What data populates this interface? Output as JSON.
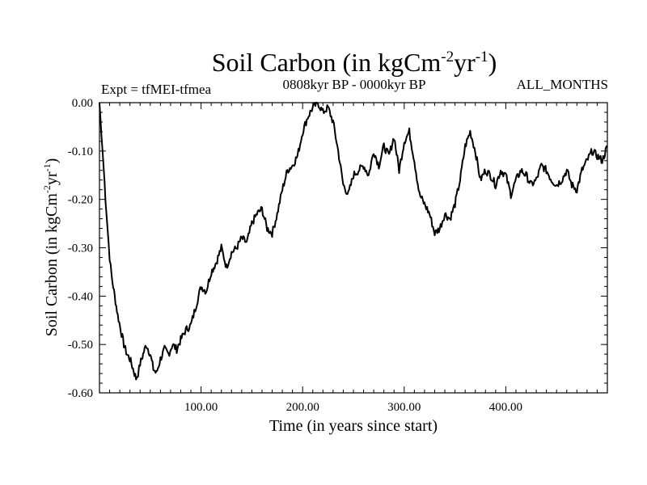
{
  "chart_data": {
    "type": "line",
    "title": {
      "main": "Soil Carbon (in kgCm",
      "exp1": "-2",
      "mid": "yr",
      "exp2": "-1",
      "end": ")"
    },
    "subtitle": "0808kyr BP - 0000kyr BP",
    "left_annotation": "Expt = tfMEI-tfmea",
    "right_annotation": "ALL_MONTHS",
    "xlabel": "Time (in years since start)",
    "ylabel": {
      "main": "Soil Carbon (in kgCm",
      "exp1": "-2",
      "mid": "yr",
      "exp2": "-1",
      "end": ")"
    },
    "xlim": [
      0,
      500
    ],
    "ylim": [
      -0.6,
      0.0
    ],
    "x_ticks": [
      100,
      200,
      300,
      400
    ],
    "x_tick_labels": [
      "100.00",
      "200.00",
      "300.00",
      "400.00"
    ],
    "x_minor_step": 10,
    "y_ticks": [
      0.0,
      -0.1,
      -0.2,
      -0.3,
      -0.4,
      -0.5,
      -0.6
    ],
    "y_tick_labels": [
      "0.00",
      "-0.10",
      "-0.20",
      "-0.30",
      "-0.40",
      "-0.50",
      "-0.60"
    ],
    "y_minor_step": 0.02,
    "grid": false,
    "series": [
      {
        "name": "Soil Carbon",
        "color": "#000000",
        "x": [
          0,
          2,
          4,
          6,
          8,
          10,
          12,
          15,
          18,
          21,
          24,
          27,
          30,
          33,
          36,
          38,
          40,
          43,
          46,
          50,
          53,
          56,
          60,
          64,
          68,
          72,
          76,
          80,
          85,
          90,
          95,
          100,
          105,
          110,
          115,
          120,
          125,
          130,
          135,
          140,
          145,
          150,
          155,
          160,
          165,
          170,
          175,
          180,
          185,
          190,
          195,
          200,
          205,
          210,
          215,
          220,
          225,
          230,
          235,
          240,
          245,
          250,
          255,
          260,
          265,
          270,
          275,
          280,
          285,
          290,
          295,
          300,
          305,
          310,
          315,
          320,
          325,
          330,
          335,
          340,
          345,
          350,
          355,
          360,
          365,
          370,
          375,
          380,
          385,
          390,
          395,
          400,
          405,
          410,
          415,
          420,
          425,
          430,
          435,
          440,
          445,
          450,
          455,
          460,
          465,
          470,
          475,
          480,
          485,
          490,
          495,
          500
        ],
        "y": [
          0.0,
          -0.07,
          -0.13,
          -0.2,
          -0.26,
          -0.32,
          -0.36,
          -0.4,
          -0.44,
          -0.47,
          -0.5,
          -0.52,
          -0.53,
          -0.55,
          -0.57,
          -0.56,
          -0.54,
          -0.52,
          -0.5,
          -0.52,
          -0.55,
          -0.56,
          -0.53,
          -0.51,
          -0.52,
          -0.5,
          -0.51,
          -0.49,
          -0.47,
          -0.46,
          -0.42,
          -0.38,
          -0.39,
          -0.35,
          -0.33,
          -0.3,
          -0.34,
          -0.31,
          -0.3,
          -0.28,
          -0.29,
          -0.25,
          -0.23,
          -0.22,
          -0.26,
          -0.27,
          -0.23,
          -0.18,
          -0.14,
          -0.13,
          -0.11,
          -0.06,
          -0.03,
          -0.01,
          0.0,
          -0.02,
          -0.01,
          -0.04,
          -0.1,
          -0.17,
          -0.19,
          -0.15,
          -0.14,
          -0.13,
          -0.15,
          -0.1,
          -0.13,
          -0.09,
          -0.11,
          -0.07,
          -0.14,
          -0.08,
          -0.06,
          -0.12,
          -0.19,
          -0.21,
          -0.23,
          -0.27,
          -0.26,
          -0.23,
          -0.24,
          -0.21,
          -0.16,
          -0.09,
          -0.06,
          -0.1,
          -0.16,
          -0.14,
          -0.15,
          -0.17,
          -0.14,
          -0.15,
          -0.19,
          -0.16,
          -0.14,
          -0.15,
          -0.17,
          -0.16,
          -0.13,
          -0.14,
          -0.16,
          -0.17,
          -0.16,
          -0.14,
          -0.17,
          -0.18,
          -0.14,
          -0.12,
          -0.1,
          -0.11,
          -0.12,
          -0.09
        ]
      }
    ]
  }
}
